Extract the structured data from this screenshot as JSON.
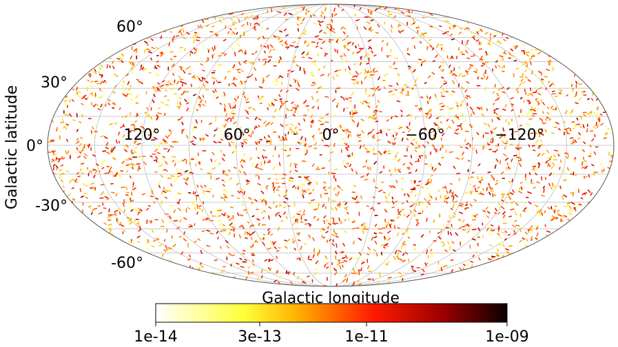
{
  "chart_data": {
    "type": "scatter",
    "projection": "mollweide",
    "xlabel": "Galactic longitude",
    "ylabel": "Galactic latitude",
    "x_tick_labels": [
      "120°",
      "60°",
      "0°",
      "−60°",
      "−120°"
    ],
    "x_tick_values": [
      120,
      60,
      0,
      -60,
      -120
    ],
    "y_tick_labels": [
      "60°",
      "30°",
      "0°",
      "-30°",
      "-60°"
    ],
    "y_tick_values": [
      60,
      30,
      0,
      -30,
      -60
    ],
    "xlim": [
      -180,
      180
    ],
    "ylim": [
      -90,
      90
    ],
    "grid": true,
    "colorbar": {
      "scale": "log",
      "range": [
        1e-14,
        1e-09
      ],
      "tick_labels": [
        "1e-14",
        "3e-13",
        "1e-11",
        "1e-09"
      ],
      "tick_values": [
        1e-14,
        3e-13,
        1e-11,
        1e-09
      ],
      "colormap": "hot_r",
      "placement": "bottom"
    },
    "series": [
      {
        "marker": "short-segment",
        "n_sources": 3000,
        "lon_distribution": "uniform",
        "lat_distribution": "isotropic",
        "value_log10_range": [
          -13.6,
          -9.3
        ]
      }
    ]
  }
}
